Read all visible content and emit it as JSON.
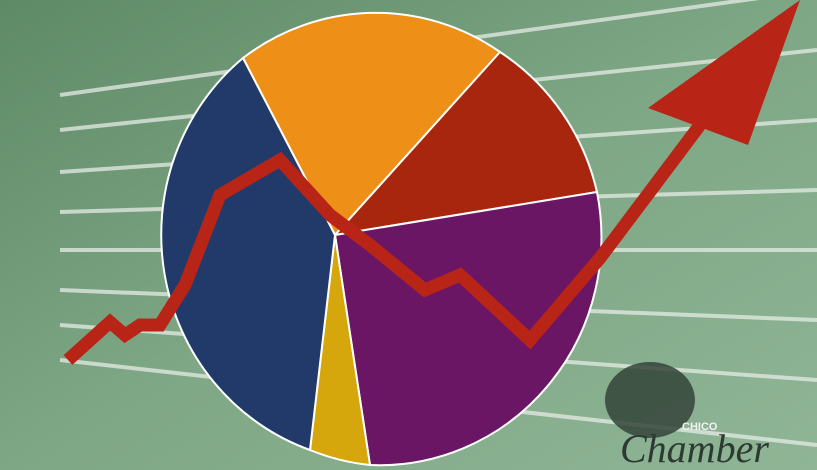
{
  "logo": {
    "small": "CHICO",
    "large": "Chamber"
  }
}
